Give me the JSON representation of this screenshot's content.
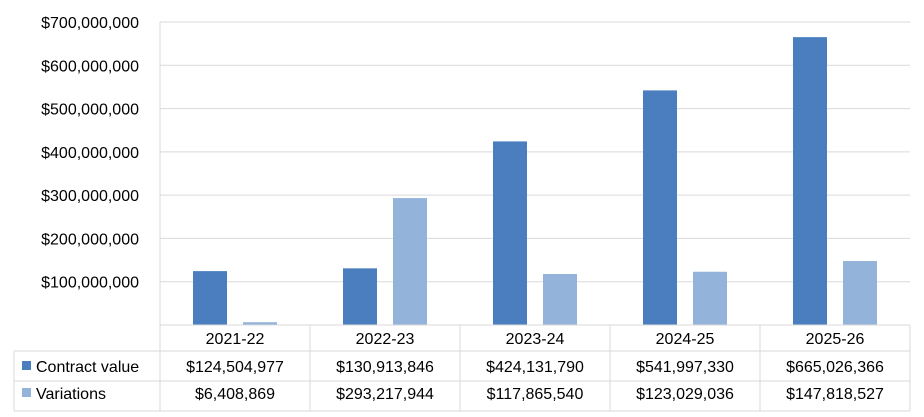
{
  "chart_data": {
    "type": "bar",
    "title": "",
    "xlabel": "",
    "ylabel": "",
    "categories": [
      "2021-22",
      "2022-23",
      "2023-24",
      "2024-25",
      "2025-26"
    ],
    "ylim": [
      0,
      700000000
    ],
    "y_ticks": [
      {
        "value": 100000000,
        "label": "$100,000,000"
      },
      {
        "value": 200000000,
        "label": "$200,000,000"
      },
      {
        "value": 300000000,
        "label": "$300,000,000"
      },
      {
        "value": 400000000,
        "label": "$400,000,000"
      },
      {
        "value": 500000000,
        "label": "$500,000,000"
      },
      {
        "value": 600000000,
        "label": "$600,000,000"
      },
      {
        "value": 700000000,
        "label": "$700,000,000"
      }
    ],
    "grid": "horizontal",
    "legend": "data table below chart",
    "series": [
      {
        "name": "Contract value",
        "color": "#4a7ebf",
        "values": [
          124504977,
          130913846,
          424131790,
          541997330,
          665026366
        ],
        "labels": [
          "$124,504,977",
          "$130,913,846",
          "$424,131,790",
          "$541,997,330",
          "$665,026,366"
        ]
      },
      {
        "name": "Variations",
        "color": "#94b3da",
        "values": [
          6408869,
          293217944,
          117865540,
          123029036,
          147818527
        ],
        "labels": [
          "$6,408,869",
          "$293,217,944",
          "$117,865,540",
          "$123,029,036",
          "$147,818,527"
        ]
      }
    ]
  }
}
